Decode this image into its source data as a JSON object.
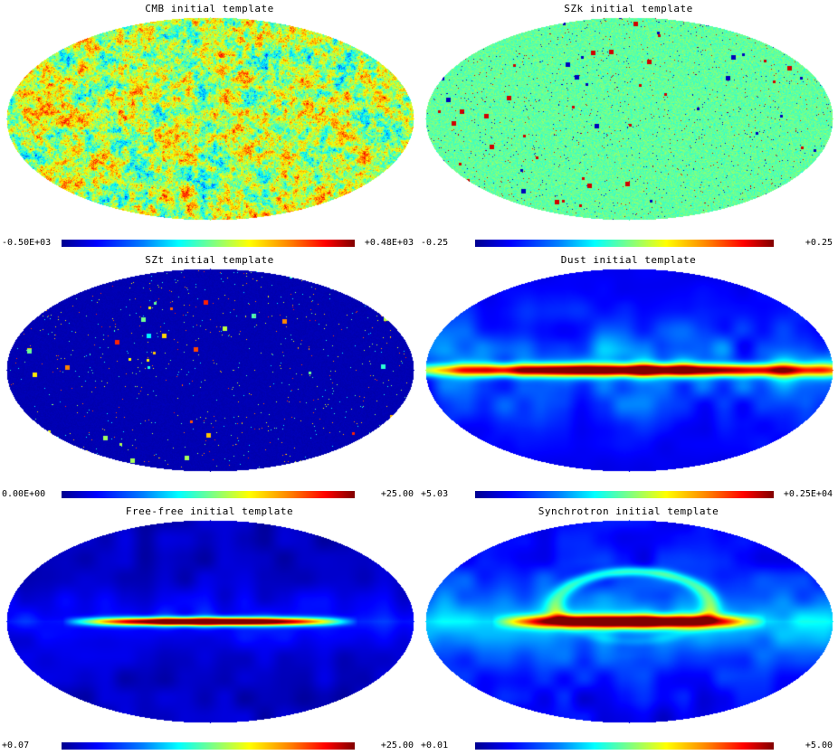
{
  "panels": [
    {
      "title": "CMB initial template",
      "min_label": "-0.50E+03",
      "max_label": "+0.48E+03",
      "style": "cmb"
    },
    {
      "title": "SZk initial template",
      "min_label": "-0.25",
      "max_label": "+0.25",
      "style": "szk"
    },
    {
      "title": "SZt initial template",
      "min_label": "0.00E+00",
      "max_label": "+25.00",
      "style": "szt"
    },
    {
      "title": "Dust initial template",
      "min_label": "+5.03",
      "max_label": "+0.25E+04",
      "style": "dust"
    },
    {
      "title": "Free-free initial template",
      "min_label": "+0.07",
      "max_label": "+25.00",
      "style": "freefree"
    },
    {
      "title": "Synchrotron initial template",
      "min_label": "+0.01",
      "max_label": "+5.00",
      "style": "sync"
    }
  ],
  "colormap": [
    "#00008f",
    "#0000ff",
    "#0080ff",
    "#00ffff",
    "#80ff80",
    "#ffff00",
    "#ff8000",
    "#ff0000",
    "#800000"
  ]
}
